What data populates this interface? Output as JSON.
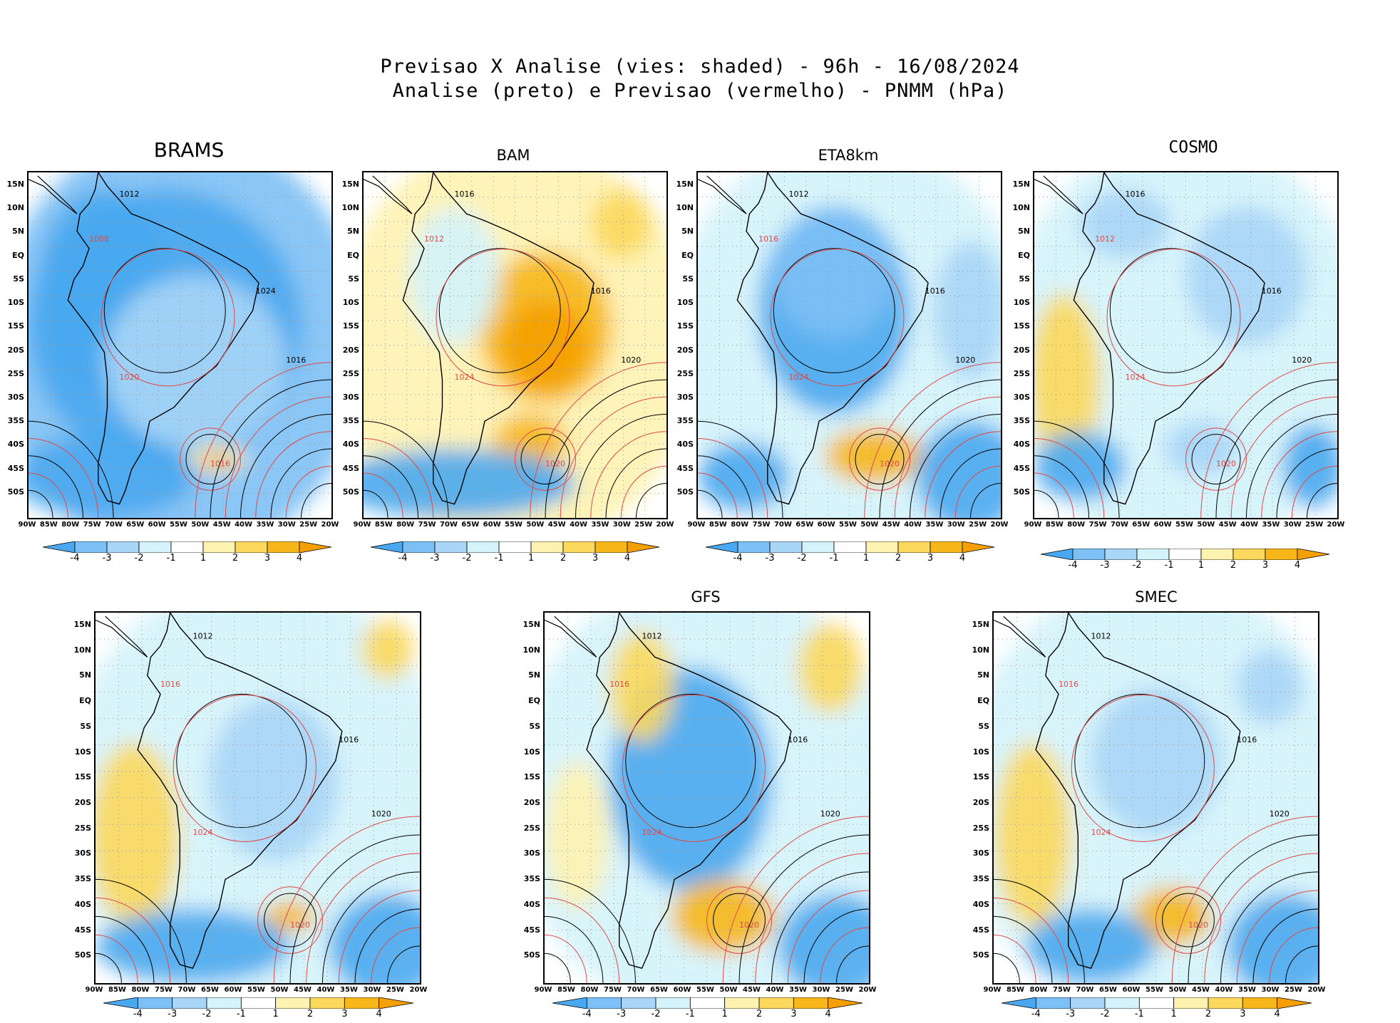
{
  "header": {
    "title_line1": "Previsao X Analise (vies: shaded) - 96h - 16/08/2024",
    "title_line2": "Analise (preto) e Previsao (vermelho) - PNMM (hPa)"
  },
  "axes": {
    "lat_labels": [
      "15N",
      "10N",
      "5N",
      "EQ",
      "5S",
      "10S",
      "15S",
      "20S",
      "25S",
      "30S",
      "35S",
      "40S",
      "45S",
      "50S"
    ],
    "lon_labels": [
      "90W",
      "85W",
      "80W",
      "75W",
      "70W",
      "65W",
      "60W",
      "55W",
      "50W",
      "45W",
      "40W",
      "35W",
      "30W",
      "25W",
      "20W"
    ]
  },
  "colorbar": {
    "labels": [
      "-4",
      "-3",
      "-2",
      "-1",
      "1",
      "2",
      "3",
      "4"
    ],
    "colors": [
      "#4aa8f0",
      "#7dc0f5",
      "#a9d5f7",
      "#d4f3fb",
      "#ffffff",
      "#fef2b0",
      "#fcd85c",
      "#f7b71a",
      "#f5a000"
    ]
  },
  "contour_colors": {
    "analysis": "#000000",
    "forecast": "#e04848"
  },
  "panels": [
    {
      "id": "brams",
      "title": "BRAMS",
      "isobars": [
        "1012",
        "1008",
        "1016",
        "1020",
        "1024",
        "1016"
      ]
    },
    {
      "id": "bam",
      "title": "BAM",
      "isobars": [
        "1016",
        "1012",
        "1020",
        "1024",
        "1016",
        "1020"
      ]
    },
    {
      "id": "eta8km",
      "title": "ETA8km",
      "isobars": [
        "1012",
        "1016",
        "1020",
        "1024",
        "1016",
        "1020"
      ]
    },
    {
      "id": "cosmo",
      "title": "COSMO",
      "isobars": [
        "1016",
        "1012",
        "1020",
        "1024",
        "1016",
        "1020"
      ]
    },
    {
      "id": "panel5",
      "title": "",
      "isobars": [
        "1012",
        "1016",
        "1020",
        "1024",
        "1016",
        "1020"
      ]
    },
    {
      "id": "gfs",
      "title": "GFS",
      "isobars": [
        "1012",
        "1016",
        "1020",
        "1024",
        "1016",
        "1020"
      ]
    },
    {
      "id": "smec",
      "title": "SMEC",
      "isobars": [
        "1012",
        "1016",
        "1020",
        "1024",
        "1016",
        "1020"
      ]
    }
  ]
}
